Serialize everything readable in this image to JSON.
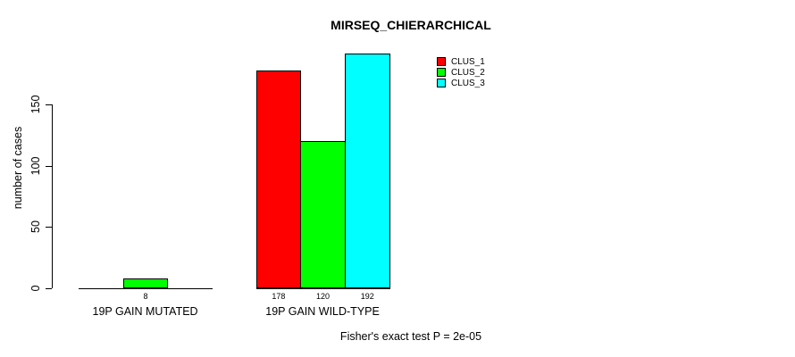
{
  "chart_data": {
    "type": "bar",
    "title": "MIRSEQ_CHIERARCHICAL",
    "xlabel": "",
    "ylabel": "number of cases",
    "categories": [
      "19P GAIN MUTATED",
      "19P GAIN WILD-TYPE"
    ],
    "series": [
      {
        "name": "CLUS_1",
        "color": "#ff0000",
        "values": [
          0,
          178
        ]
      },
      {
        "name": "CLUS_2",
        "color": "#00ff00",
        "values": [
          8,
          120
        ]
      },
      {
        "name": "CLUS_3",
        "color": "#00ffff",
        "values": [
          0,
          192
        ]
      }
    ],
    "bar_value_labels": [
      [
        "",
        "8",
        ""
      ],
      [
        "178",
        "120",
        "192"
      ]
    ],
    "yticks": [
      0,
      50,
      100,
      150
    ],
    "ylim": [
      0,
      150
    ],
    "grid": false,
    "legend": {
      "position": "top-right",
      "entries": [
        "CLUS_1",
        "CLUS_2",
        "CLUS_3"
      ]
    },
    "annotation": "Fisher's exact test P = 2e-05",
    "colors": {
      "background": "#ffffff",
      "axis": "#000000",
      "text": "#000000"
    }
  }
}
